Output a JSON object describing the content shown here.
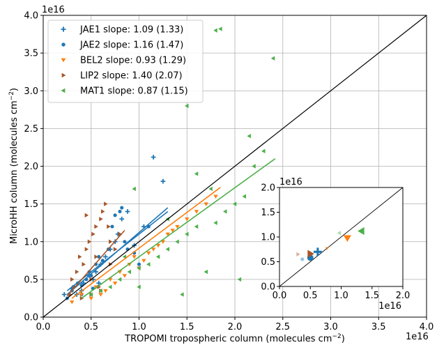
{
  "chart_data": {
    "type": "scatter",
    "xlabel": "TROPOMI tropospheric column (molecules cm",
    "ylabel": "MicroHH column (molecules cm",
    "label_unit_exponent": "−2",
    "label_close": ")",
    "offset_text": "1e16",
    "xlim": [
      0,
      4.0
    ],
    "ylim": [
      0,
      4.0
    ],
    "x_ticks": [
      "0.0",
      "0.5",
      "1.0",
      "1.5",
      "2.0",
      "2.5",
      "3.0",
      "3.5",
      "4.0"
    ],
    "y_ticks": [
      "0.0",
      "0.5",
      "1.0",
      "1.5",
      "2.0",
      "2.5",
      "3.0",
      "3.5",
      "4.0"
    ],
    "grid": true,
    "legend_placement": "top-left",
    "one_to_one_line": true,
    "series": [
      {
        "name": "JAE1 slope: 1.09 (1.33)",
        "color": "#1f77b4",
        "marker": "plus",
        "x": [
          0.22,
          0.3,
          0.35,
          0.42,
          0.48,
          0.52,
          0.55,
          0.6,
          0.65,
          0.7,
          0.75,
          0.78,
          0.82,
          0.88,
          0.95,
          1.05,
          1.15,
          1.25,
          0.4,
          0.58
        ],
        "y": [
          0.3,
          0.38,
          0.3,
          0.45,
          0.55,
          0.5,
          0.6,
          0.7,
          0.8,
          0.9,
          1.0,
          1.1,
          1.3,
          1.4,
          0.95,
          1.2,
          2.12,
          1.8,
          0.35,
          0.45
        ],
        "fit": {
          "x": [
            0.25,
            1.3
          ],
          "y": [
            0.35,
            1.4
          ]
        }
      },
      {
        "name": "JAE2 slope: 1.16 (1.47)",
        "color": "#1f77b4",
        "marker": "circle",
        "x": [
          0.25,
          0.3,
          0.32,
          0.36,
          0.4,
          0.45,
          0.48,
          0.5,
          0.55,
          0.58,
          0.62,
          0.68,
          0.72,
          0.75,
          0.8,
          0.82,
          0.85,
          0.88,
          0.95,
          1.0,
          1.1,
          0.4,
          0.52
        ],
        "y": [
          0.25,
          0.35,
          0.4,
          0.45,
          0.3,
          0.5,
          0.6,
          0.55,
          0.7,
          0.8,
          0.75,
          0.9,
          1.2,
          1.35,
          1.4,
          1.45,
          1.0,
          0.9,
          0.85,
          0.7,
          1.2,
          0.42,
          0.38
        ],
        "fit": {
          "x": [
            0.25,
            1.3
          ],
          "y": [
            0.3,
            1.45
          ]
        }
      },
      {
        "name": "BEL2 slope: 0.93 (1.29)",
        "color": "#ff7f0e",
        "marker": "triangle-down",
        "x": [
          0.3,
          0.4,
          0.5,
          0.55,
          0.6,
          0.7,
          0.8,
          0.85,
          0.9,
          0.95,
          1.0,
          1.05,
          1.1,
          1.15,
          1.2,
          1.25,
          1.3,
          1.35,
          1.4,
          1.5,
          1.6,
          1.7,
          1.8,
          0.65,
          0.75
        ],
        "y": [
          0.2,
          0.3,
          0.25,
          0.4,
          0.3,
          0.5,
          0.6,
          0.55,
          0.7,
          0.8,
          0.65,
          0.75,
          0.85,
          0.9,
          0.95,
          1.0,
          1.1,
          1.15,
          1.2,
          1.3,
          1.4,
          1.5,
          1.6,
          0.35,
          0.45
        ],
        "fit": {
          "x": [
            0.3,
            1.85
          ],
          "y": [
            0.25,
            1.72
          ]
        }
      },
      {
        "name": "LIP2 slope: 1.40 (2.07)",
        "color": "#a65628",
        "marker": "triangle-right",
        "x": [
          0.28,
          0.32,
          0.35,
          0.38,
          0.42,
          0.45,
          0.48,
          0.5,
          0.52,
          0.55,
          0.58,
          0.6,
          0.62,
          0.65,
          0.68,
          0.7,
          0.75,
          0.8,
          0.4,
          0.55,
          0.6,
          0.7,
          0.3,
          0.45,
          0.5
        ],
        "y": [
          0.3,
          0.4,
          0.6,
          0.8,
          0.7,
          0.9,
          1.0,
          0.5,
          1.1,
          1.2,
          0.4,
          1.3,
          1.4,
          1.5,
          1.2,
          1.0,
          0.9,
          1.1,
          0.25,
          0.8,
          0.35,
          0.7,
          0.5,
          1.35,
          0.3
        ],
        "fit": {
          "x": [
            0.25,
            0.85
          ],
          "y": [
            0.28,
            1.15
          ]
        }
      },
      {
        "name": "MAT1 slope: 0.87 (1.15)",
        "color": "#4daf4a",
        "marker": "triangle-left",
        "x": [
          0.5,
          0.6,
          0.7,
          0.8,
          0.9,
          1.0,
          1.1,
          1.2,
          1.3,
          1.4,
          1.5,
          1.6,
          1.7,
          1.8,
          1.9,
          2.0,
          2.1,
          2.2,
          2.3,
          1.85,
          1.8,
          2.4,
          1.5,
          1.6,
          1.75,
          2.15,
          1.3,
          1.0,
          0.85,
          0.95,
          2.05,
          1.45
        ],
        "y": [
          0.3,
          0.35,
          0.4,
          0.5,
          0.6,
          0.65,
          0.7,
          0.8,
          0.9,
          1.0,
          1.1,
          1.2,
          0.6,
          1.25,
          1.4,
          1.5,
          1.6,
          2.0,
          2.2,
          3.82,
          3.8,
          3.43,
          2.8,
          1.9,
          1.7,
          2.4,
          1.3,
          0.4,
          0.8,
          1.7,
          0.5,
          0.3
        ],
        "fit": {
          "x": [
            0.4,
            2.42
          ],
          "y": [
            0.25,
            2.1
          ]
        }
      }
    ],
    "inset": {
      "xlim": [
        0,
        2.0
      ],
      "ylim": [
        0,
        2.0
      ],
      "x_ticks": [
        "0.0",
        "0.5",
        "1.0",
        "1.5",
        "2.0"
      ],
      "y_ticks": [
        "0.0",
        "0.5",
        "1.0",
        "1.5",
        "2.0"
      ],
      "offset_text": "1e16",
      "points": [
        {
          "series": 0,
          "x": 0.62,
          "y": 0.7
        },
        {
          "series": 1,
          "x": 0.5,
          "y": 0.58
        },
        {
          "series": 2,
          "x": 1.1,
          "y": 0.98
        },
        {
          "series": 3,
          "x": 0.5,
          "y": 0.66
        },
        {
          "series": 4,
          "x": 1.33,
          "y": 1.12
        },
        {
          "series": 1,
          "x": 0.37,
          "y": 0.55,
          "faded": true
        },
        {
          "series": 2,
          "x": 0.77,
          "y": 0.77,
          "faded": true
        },
        {
          "series": 3,
          "x": 0.3,
          "y": 0.65,
          "faded": true
        },
        {
          "series": 4,
          "x": 0.97,
          "y": 1.08,
          "faded": true
        }
      ]
    }
  }
}
